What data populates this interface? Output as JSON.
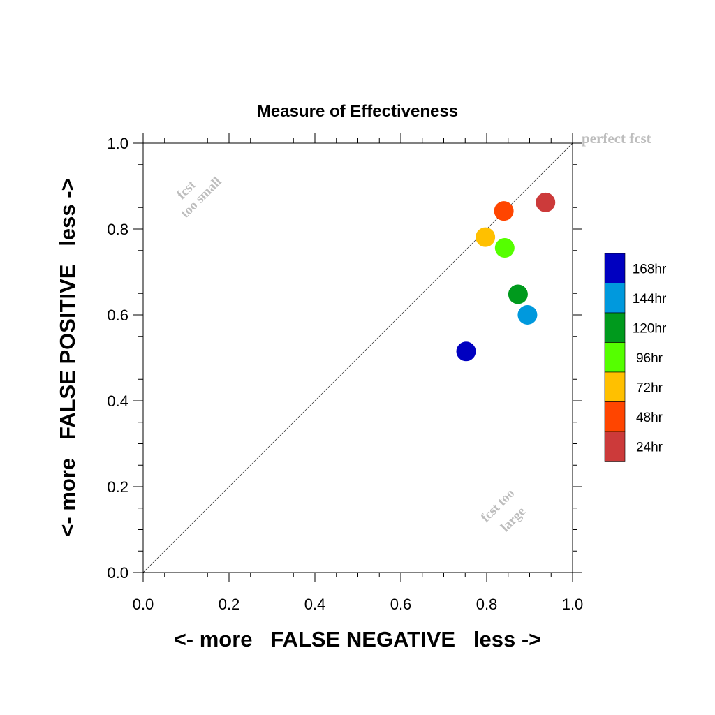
{
  "chart_data": {
    "type": "scatter",
    "title": "Measure of Effectiveness",
    "xlabel": "<- more   FALSE NEGATIVE   less ->",
    "ylabel": "<- more   FALSE POSITIVE   less ->",
    "xlim": [
      0.0,
      1.0
    ],
    "ylim": [
      0.0,
      1.0
    ],
    "x_ticks": [
      "0.0",
      "0.2",
      "0.4",
      "0.6",
      "0.8",
      "1.0"
    ],
    "y_ticks": [
      "0.0",
      "0.2",
      "0.4",
      "0.6",
      "0.8",
      "1.0"
    ],
    "grid": false,
    "diagonal_line": true,
    "annotations": {
      "perfect": "perfect fcst",
      "too_small_1": "fcst",
      "too_small_2": "too small",
      "too_large_1": "fcst too",
      "too_large_2": "large"
    },
    "legend_position": "right",
    "series": [
      {
        "name": "168hr",
        "color": "#0000c0",
        "x": 0.752,
        "y": 0.515
      },
      {
        "name": "144hr",
        "color": "#0099dd",
        "x": 0.895,
        "y": 0.6
      },
      {
        "name": "120hr",
        "color": "#009a1d",
        "x": 0.873,
        "y": 0.648
      },
      {
        "name": "96hr",
        "color": "#55ff00",
        "x": 0.842,
        "y": 0.756
      },
      {
        "name": "72hr",
        "color": "#ffc000",
        "x": 0.797,
        "y": 0.781
      },
      {
        "name": "48hr",
        "color": "#ff4500",
        "x": 0.84,
        "y": 0.842
      },
      {
        "name": "24hr",
        "color": "#cc3a3a",
        "x": 0.937,
        "y": 0.862
      }
    ]
  }
}
